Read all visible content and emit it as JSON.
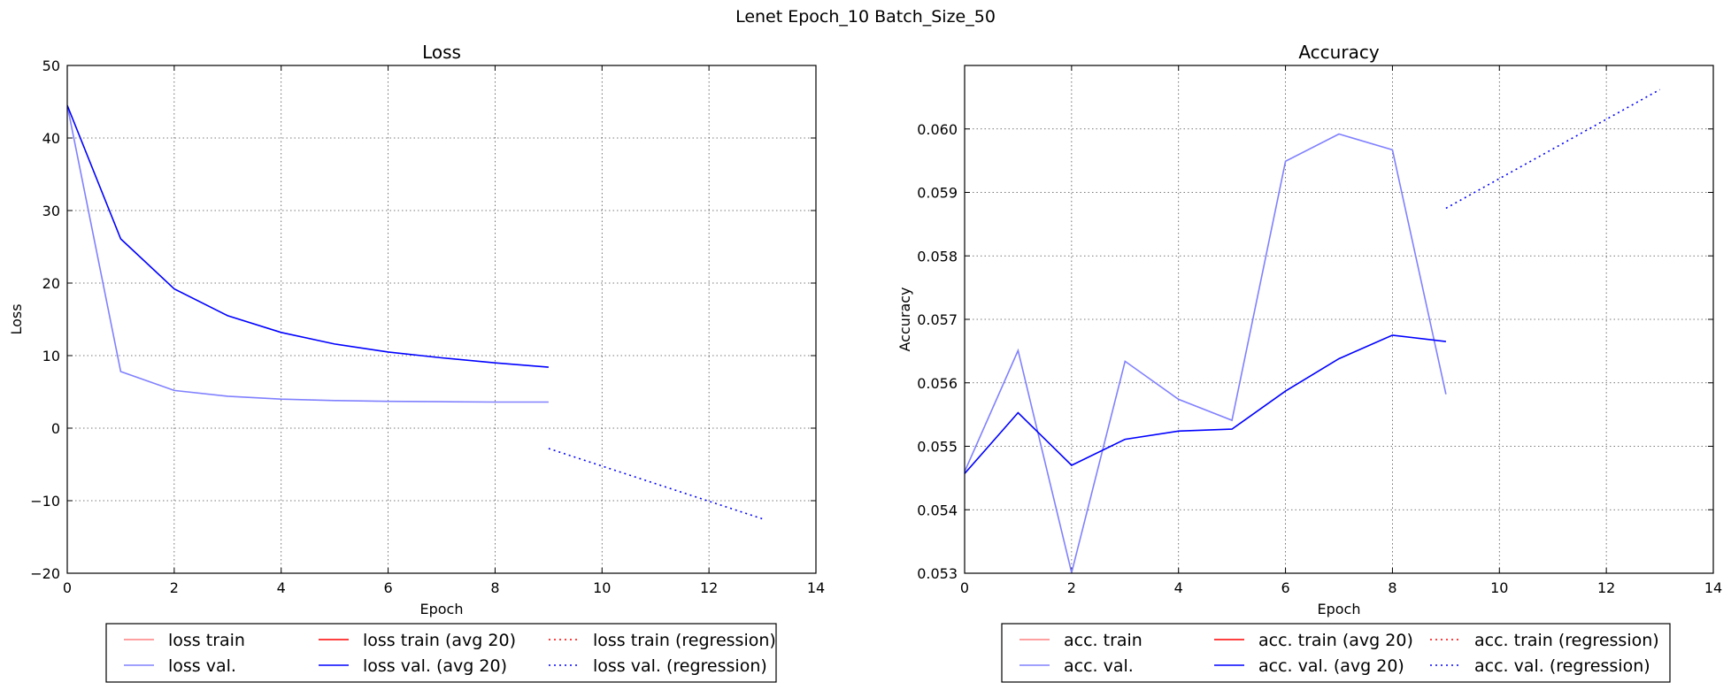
{
  "figure_title": "Lenet Epoch_10 Batch_Size_50",
  "chart_data": [
    {
      "type": "line",
      "title": "Loss",
      "xlabel": "Epoch",
      "ylabel": "Loss",
      "xlim": [
        0,
        14
      ],
      "ylim": [
        -20,
        50
      ],
      "xticks": [
        "0",
        "2",
        "4",
        "6",
        "8",
        "10",
        "12",
        "14"
      ],
      "yticks": [
        "−20",
        "−10",
        "0",
        "10",
        "20",
        "30",
        "40",
        "50"
      ],
      "grid": true,
      "series": [
        {
          "name": "loss val.",
          "color": "#8080ff",
          "style": "solid",
          "x": [
            0,
            1,
            2,
            3,
            4,
            5,
            6,
            7,
            8,
            9
          ],
          "y": [
            44.5,
            7.8,
            5.2,
            4.4,
            4.0,
            3.8,
            3.7,
            3.65,
            3.6,
            3.6
          ]
        },
        {
          "name": "loss val. (avg 20)",
          "color": "#0000ff",
          "style": "solid",
          "x": [
            0,
            1,
            2,
            3,
            4,
            5,
            6,
            7,
            8,
            9
          ],
          "y": [
            44.5,
            26.1,
            19.2,
            15.5,
            13.2,
            11.6,
            10.5,
            9.7,
            9.0,
            8.4
          ]
        },
        {
          "name": "loss val. (regression)",
          "color": "#0000ff",
          "style": "dotted",
          "x": [
            9,
            13
          ],
          "y": [
            -2.8,
            -12.5
          ]
        }
      ],
      "legend": {
        "placement": "bottom-outside",
        "items": [
          {
            "label": "loss train",
            "color": "#ff8080",
            "style": "solid"
          },
          {
            "label": "loss train (avg 20)",
            "color": "#ff0000",
            "style": "solid"
          },
          {
            "label": "loss train (regression)",
            "color": "#ff0000",
            "style": "dotted"
          },
          {
            "label": "loss val.",
            "color": "#8080ff",
            "style": "solid"
          },
          {
            "label": "loss val. (avg 20)",
            "color": "#0000ff",
            "style": "solid"
          },
          {
            "label": "loss val. (regression)",
            "color": "#0000ff",
            "style": "dotted"
          }
        ]
      }
    },
    {
      "type": "line",
      "title": "Accuracy",
      "xlabel": "Epoch",
      "ylabel": "Accuracy",
      "xlim": [
        0,
        14
      ],
      "ylim": [
        0.053,
        0.061
      ],
      "xticks": [
        "0",
        "2",
        "4",
        "6",
        "8",
        "10",
        "12",
        "14"
      ],
      "yticks": [
        "0.053",
        "0.054",
        "0.055",
        "0.056",
        "0.057",
        "0.058",
        "0.059",
        "0.060"
      ],
      "grid": true,
      "series": [
        {
          "name": "acc. val.",
          "color": "#8080ff",
          "style": "solid",
          "x": [
            0,
            1,
            2,
            3,
            4,
            5,
            6,
            7,
            8,
            9
          ],
          "y": [
            0.0546,
            0.05651,
            0.05301,
            0.05634,
            0.05574,
            0.05541,
            0.05949,
            0.05992,
            0.05967,
            0.05582
          ]
        },
        {
          "name": "acc. val. (avg 20)",
          "color": "#0000ff",
          "style": "solid",
          "x": [
            0,
            1,
            2,
            3,
            4,
            5,
            6,
            7,
            8,
            9
          ],
          "y": [
            0.05457,
            0.05553,
            0.0547,
            0.05511,
            0.05524,
            0.05527,
            0.05587,
            0.05638,
            0.05675,
            0.05665
          ]
        },
        {
          "name": "acc. val. (regression)",
          "color": "#0000ff",
          "style": "dotted",
          "x": [
            9,
            13
          ],
          "y": [
            0.05875,
            0.06062
          ]
        }
      ],
      "legend": {
        "placement": "bottom-outside",
        "items": [
          {
            "label": "acc. train",
            "color": "#ff8080",
            "style": "solid"
          },
          {
            "label": "acc. train (avg 20)",
            "color": "#ff0000",
            "style": "solid"
          },
          {
            "label": "acc. train (regression)",
            "color": "#ff0000",
            "style": "dotted"
          },
          {
            "label": "acc. val.",
            "color": "#8080ff",
            "style": "solid"
          },
          {
            "label": "acc. val. (avg 20)",
            "color": "#0000ff",
            "style": "solid"
          },
          {
            "label": "acc. val. (regression)",
            "color": "#0000ff",
            "style": "dotted"
          }
        ]
      }
    }
  ]
}
